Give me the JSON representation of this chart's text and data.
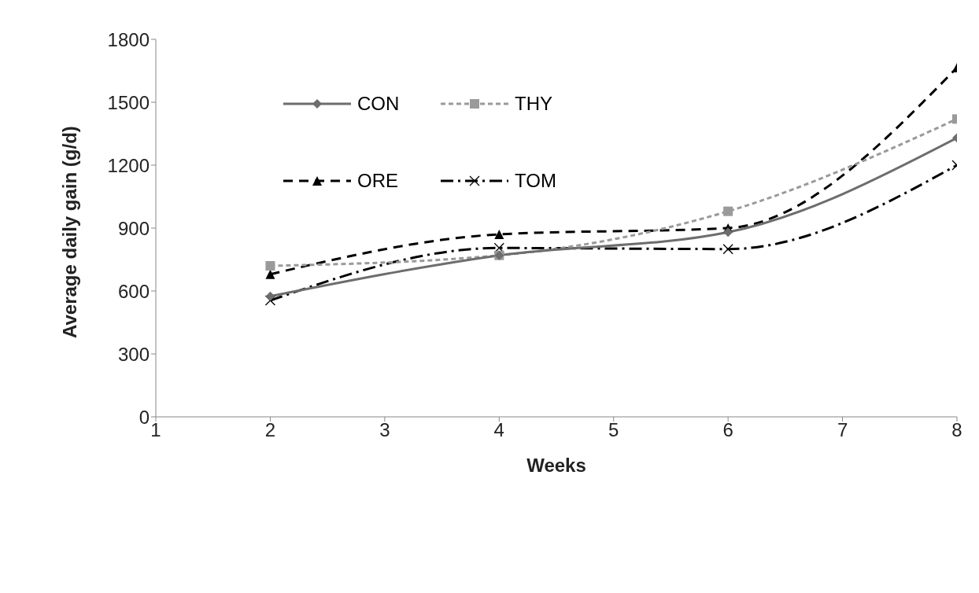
{
  "chart_data": {
    "type": "line",
    "xlabel": "Weeks",
    "ylabel": "Average daily gain (g/d)",
    "x": [
      2,
      4,
      6,
      8
    ],
    "series": [
      {
        "name": "CON",
        "color": "#6d6d6d",
        "marker": "diamond",
        "line_style": "solid",
        "values": [
          575,
          770,
          880,
          1330
        ]
      },
      {
        "name": "THY",
        "color": "#9a9a9a",
        "marker": "square",
        "line_style": "dashed",
        "values": [
          720,
          770,
          980,
          1420
        ]
      },
      {
        "name": "ORE",
        "color": "#000000",
        "marker": "triangle",
        "line_style": "longdash",
        "values": [
          680,
          870,
          900,
          1665
        ]
      },
      {
        "name": "TOM",
        "color": "#000000",
        "marker": "cross",
        "line_style": "dashdot",
        "values": [
          555,
          805,
          800,
          1200
        ]
      }
    ],
    "xlim": [
      1,
      8
    ],
    "xticks": [
      1,
      2,
      3,
      4,
      5,
      6,
      7,
      8
    ],
    "ylim": [
      0,
      1800
    ],
    "yticks": [
      0,
      300,
      600,
      900,
      1200,
      1500,
      1800
    ],
    "grid": false,
    "legend": "top left"
  }
}
